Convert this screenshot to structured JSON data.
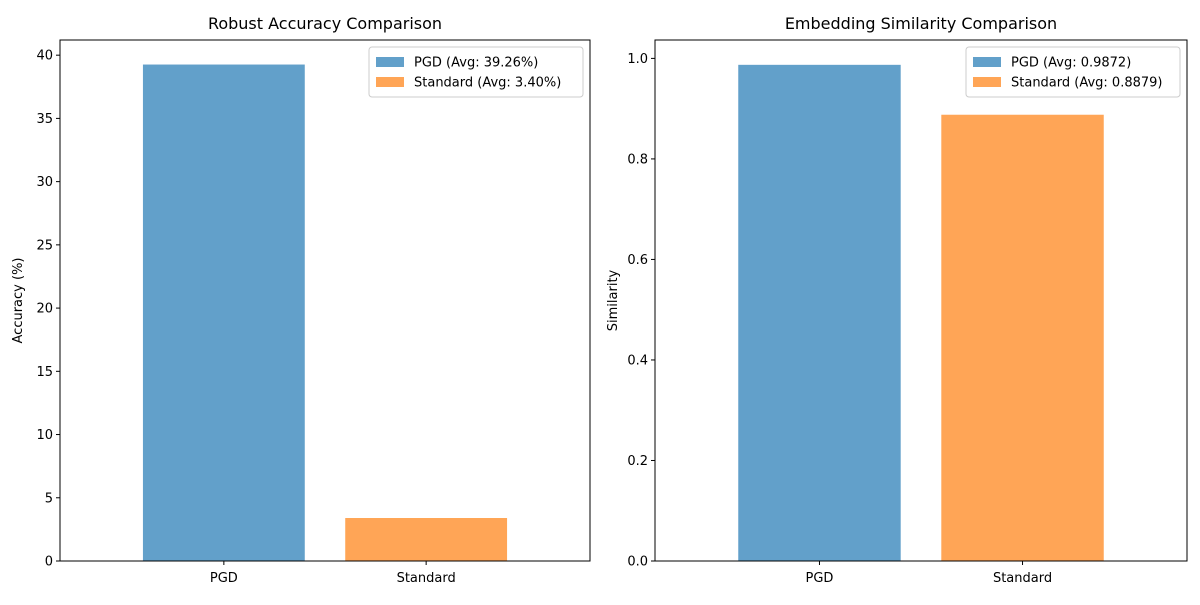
{
  "chart_data": [
    {
      "type": "bar",
      "title": "Robust Accuracy Comparison",
      "xlabel": "",
      "ylabel": "Accuracy (%)",
      "categories": [
        "PGD",
        "Standard"
      ],
      "values": [
        39.26,
        3.4
      ],
      "ylim": [
        0,
        41.2
      ],
      "yticks": [
        0,
        5,
        10,
        15,
        20,
        25,
        30,
        35,
        40
      ],
      "legend": [
        "PGD (Avg: 39.26%)",
        "Standard (Avg: 3.40%)"
      ],
      "legend_position": "top-right",
      "colors": [
        "#1f77b4",
        "#ff7f0e"
      ],
      "bar_alpha": 0.7,
      "grid": false
    },
    {
      "type": "bar",
      "title": "Embedding Similarity Comparison",
      "xlabel": "",
      "ylabel": "Similarity",
      "categories": [
        "PGD",
        "Standard"
      ],
      "values": [
        0.9872,
        0.8879
      ],
      "ylim": [
        0,
        1.0366
      ],
      "yticks": [
        0.0,
        0.2,
        0.4,
        0.6,
        0.8,
        1.0
      ],
      "legend": [
        "PGD (Avg: 0.9872)",
        "Standard (Avg: 0.8879)"
      ],
      "legend_position": "top-right",
      "colors": [
        "#1f77b4",
        "#ff7f0e"
      ],
      "bar_alpha": 0.7,
      "grid": false
    }
  ]
}
